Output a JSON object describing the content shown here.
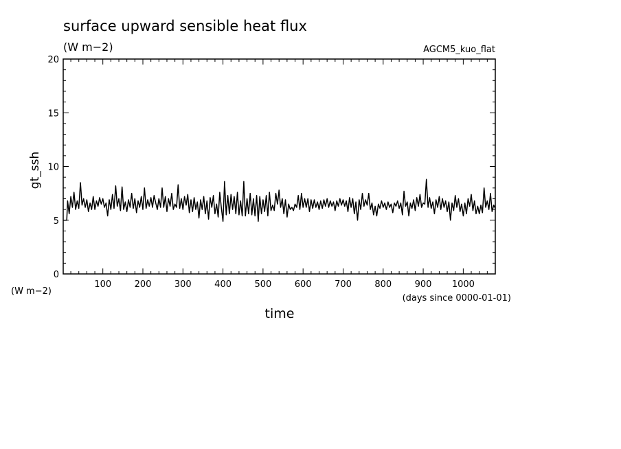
{
  "chart_data": {
    "type": "line",
    "title": "surface upward sensible heat flux",
    "title_units": "(W m−2)",
    "experiment": "AGCM5_kuo_flat",
    "xlabel": "time",
    "x_units": "(days since 0000-01-01)",
    "ylabel": "gt_ssh",
    "y_units": "(W m−2)",
    "xlim": [
      1,
      1080
    ],
    "ylim": [
      0,
      20
    ],
    "x_ticks": [
      100,
      200,
      300,
      400,
      500,
      600,
      700,
      800,
      900,
      1000
    ],
    "y_ticks": [
      0,
      5,
      10,
      15,
      20
    ],
    "grid": false,
    "series": [
      {
        "values": [
          [
            1,
            5.0
          ],
          [
            10,
            5.0
          ],
          [
            12,
            6.8
          ],
          [
            16,
            5.6
          ],
          [
            20,
            7.2
          ],
          [
            24,
            6.2
          ],
          [
            28,
            7.6
          ],
          [
            32,
            6.0
          ],
          [
            36,
            6.8
          ],
          [
            40,
            6.1
          ],
          [
            44,
            8.5
          ],
          [
            48,
            6.4
          ],
          [
            52,
            7.0
          ],
          [
            56,
            6.2
          ],
          [
            60,
            6.9
          ],
          [
            64,
            5.8
          ],
          [
            68,
            6.6
          ],
          [
            72,
            6.0
          ],
          [
            76,
            7.2
          ],
          [
            80,
            6.0
          ],
          [
            84,
            6.8
          ],
          [
            88,
            6.3
          ],
          [
            92,
            7.1
          ],
          [
            96,
            6.5
          ],
          [
            100,
            7.0
          ],
          [
            104,
            6.2
          ],
          [
            108,
            6.6
          ],
          [
            112,
            5.4
          ],
          [
            116,
            6.9
          ],
          [
            120,
            6.0
          ],
          [
            124,
            7.4
          ],
          [
            128,
            6.1
          ],
          [
            132,
            8.2
          ],
          [
            136,
            6.3
          ],
          [
            140,
            7.0
          ],
          [
            144,
            5.9
          ],
          [
            148,
            8.1
          ],
          [
            152,
            6.0
          ],
          [
            156,
            6.7
          ],
          [
            160,
            5.8
          ],
          [
            164,
            6.9
          ],
          [
            168,
            6.2
          ],
          [
            172,
            7.5
          ],
          [
            176,
            6.1
          ],
          [
            180,
            7.0
          ],
          [
            184,
            5.7
          ],
          [
            188,
            6.8
          ],
          [
            192,
            6.2
          ],
          [
            196,
            7.2
          ],
          [
            200,
            6.0
          ],
          [
            204,
            8.0
          ],
          [
            208,
            6.1
          ],
          [
            212,
            6.9
          ],
          [
            216,
            6.3
          ],
          [
            220,
            7.1
          ],
          [
            224,
            6.2
          ],
          [
            228,
            7.3
          ],
          [
            232,
            6.6
          ],
          [
            236,
            6.0
          ],
          [
            240,
            7.0
          ],
          [
            244,
            6.2
          ],
          [
            248,
            8.0
          ],
          [
            252,
            6.2
          ],
          [
            256,
            7.2
          ],
          [
            260,
            5.8
          ],
          [
            264,
            7.0
          ],
          [
            268,
            6.3
          ],
          [
            272,
            7.5
          ],
          [
            276,
            6.0
          ],
          [
            280,
            6.5
          ],
          [
            284,
            6.2
          ],
          [
            288,
            8.3
          ],
          [
            292,
            6.1
          ],
          [
            296,
            7.0
          ],
          [
            300,
            6.0
          ],
          [
            304,
            7.2
          ],
          [
            308,
            6.4
          ],
          [
            312,
            7.4
          ],
          [
            316,
            5.7
          ],
          [
            320,
            6.9
          ],
          [
            324,
            5.8
          ],
          [
            328,
            7.1
          ],
          [
            332,
            6.0
          ],
          [
            336,
            6.7
          ],
          [
            340,
            5.2
          ],
          [
            344,
            6.9
          ],
          [
            348,
            6.0
          ],
          [
            352,
            7.2
          ],
          [
            356,
            5.6
          ],
          [
            360,
            6.8
          ],
          [
            364,
            5.1
          ],
          [
            368,
            7.1
          ],
          [
            372,
            6.2
          ],
          [
            376,
            7.3
          ],
          [
            380,
            5.6
          ],
          [
            384,
            6.5
          ],
          [
            388,
            5.3
          ],
          [
            392,
            7.6
          ],
          [
            396,
            6.1
          ],
          [
            400,
            4.9
          ],
          [
            404,
            8.6
          ],
          [
            408,
            5.5
          ],
          [
            412,
            7.3
          ],
          [
            416,
            5.6
          ],
          [
            420,
            7.4
          ],
          [
            424,
            6.0
          ],
          [
            428,
            7.2
          ],
          [
            432,
            5.6
          ],
          [
            436,
            7.6
          ],
          [
            440,
            5.5
          ],
          [
            444,
            6.8
          ],
          [
            448,
            5.4
          ],
          [
            452,
            8.6
          ],
          [
            456,
            5.4
          ],
          [
            460,
            7.0
          ],
          [
            464,
            5.6
          ],
          [
            468,
            7.5
          ],
          [
            472,
            5.5
          ],
          [
            476,
            7.0
          ],
          [
            480,
            5.4
          ],
          [
            484,
            7.3
          ],
          [
            488,
            4.9
          ],
          [
            492,
            7.2
          ],
          [
            496,
            5.6
          ],
          [
            500,
            6.9
          ],
          [
            504,
            5.8
          ],
          [
            508,
            7.3
          ],
          [
            512,
            5.4
          ],
          [
            516,
            7.6
          ],
          [
            520,
            5.9
          ],
          [
            524,
            6.4
          ],
          [
            528,
            5.9
          ],
          [
            532,
            7.5
          ],
          [
            536,
            6.5
          ],
          [
            540,
            7.8
          ],
          [
            544,
            6.2
          ],
          [
            548,
            7.0
          ],
          [
            552,
            5.6
          ],
          [
            556,
            6.9
          ],
          [
            560,
            5.3
          ],
          [
            564,
            6.5
          ],
          [
            568,
            6.0
          ],
          [
            572,
            6.2
          ],
          [
            576,
            5.9
          ],
          [
            580,
            6.5
          ],
          [
            584,
            6.2
          ],
          [
            588,
            7.3
          ],
          [
            592,
            6.0
          ],
          [
            596,
            7.5
          ],
          [
            600,
            6.2
          ],
          [
            604,
            7.0
          ],
          [
            608,
            6.2
          ],
          [
            612,
            7.0
          ],
          [
            616,
            5.8
          ],
          [
            620,
            6.9
          ],
          [
            624,
            6.1
          ],
          [
            628,
            6.9
          ],
          [
            632,
            6.2
          ],
          [
            636,
            6.7
          ],
          [
            640,
            6.0
          ],
          [
            644,
            6.8
          ],
          [
            648,
            6.1
          ],
          [
            652,
            6.9
          ],
          [
            656,
            6.3
          ],
          [
            660,
            7.0
          ],
          [
            664,
            6.2
          ],
          [
            668,
            6.8
          ],
          [
            672,
            6.3
          ],
          [
            676,
            6.7
          ],
          [
            680,
            5.9
          ],
          [
            684,
            6.8
          ],
          [
            688,
            6.3
          ],
          [
            692,
            7.0
          ],
          [
            696,
            6.4
          ],
          [
            700,
            6.9
          ],
          [
            704,
            6.3
          ],
          [
            708,
            6.8
          ],
          [
            712,
            5.8
          ],
          [
            716,
            7.1
          ],
          [
            720,
            6.2
          ],
          [
            724,
            7.0
          ],
          [
            728,
            5.6
          ],
          [
            732,
            6.7
          ],
          [
            736,
            5.0
          ],
          [
            740,
            6.9
          ],
          [
            744,
            6.0
          ],
          [
            748,
            7.5
          ],
          [
            752,
            6.3
          ],
          [
            756,
            6.9
          ],
          [
            760,
            6.4
          ],
          [
            764,
            7.5
          ],
          [
            768,
            6.0
          ],
          [
            772,
            6.6
          ],
          [
            776,
            5.5
          ],
          [
            780,
            6.3
          ],
          [
            784,
            5.4
          ],
          [
            788,
            6.5
          ],
          [
            792,
            6.1
          ],
          [
            796,
            6.8
          ],
          [
            800,
            6.2
          ],
          [
            804,
            6.6
          ],
          [
            808,
            6.0
          ],
          [
            812,
            6.7
          ],
          [
            816,
            6.2
          ],
          [
            820,
            6.5
          ],
          [
            824,
            5.7
          ],
          [
            828,
            6.6
          ],
          [
            832,
            6.3
          ],
          [
            836,
            6.8
          ],
          [
            840,
            6.1
          ],
          [
            844,
            6.6
          ],
          [
            848,
            5.5
          ],
          [
            852,
            7.7
          ],
          [
            856,
            6.3
          ],
          [
            860,
            6.7
          ],
          [
            864,
            5.4
          ],
          [
            868,
            6.6
          ],
          [
            872,
            6.1
          ],
          [
            876,
            6.9
          ],
          [
            880,
            5.9
          ],
          [
            884,
            7.1
          ],
          [
            888,
            6.3
          ],
          [
            892,
            7.4
          ],
          [
            896,
            6.2
          ],
          [
            900,
            6.6
          ],
          [
            904,
            6.5
          ],
          [
            908,
            8.8
          ],
          [
            912,
            6.2
          ],
          [
            916,
            7.1
          ],
          [
            920,
            6.1
          ],
          [
            924,
            6.7
          ],
          [
            928,
            5.6
          ],
          [
            932,
            6.9
          ],
          [
            936,
            6.2
          ],
          [
            940,
            7.2
          ],
          [
            944,
            6.0
          ],
          [
            948,
            7.0
          ],
          [
            952,
            6.2
          ],
          [
            956,
            6.8
          ],
          [
            960,
            5.8
          ],
          [
            964,
            6.7
          ],
          [
            968,
            5.0
          ],
          [
            972,
            6.6
          ],
          [
            976,
            5.9
          ],
          [
            980,
            7.3
          ],
          [
            984,
            6.2
          ],
          [
            988,
            7.0
          ],
          [
            992,
            5.8
          ],
          [
            996,
            6.5
          ],
          [
            1000,
            5.4
          ],
          [
            1004,
            6.6
          ],
          [
            1008,
            5.6
          ],
          [
            1012,
            7.0
          ],
          [
            1016,
            6.3
          ],
          [
            1020,
            7.4
          ],
          [
            1024,
            5.9
          ],
          [
            1028,
            6.8
          ],
          [
            1032,
            5.6
          ],
          [
            1036,
            6.3
          ],
          [
            1040,
            5.6
          ],
          [
            1044,
            6.4
          ],
          [
            1048,
            5.7
          ],
          [
            1052,
            8.0
          ],
          [
            1056,
            6.2
          ],
          [
            1060,
            6.8
          ],
          [
            1064,
            6.0
          ],
          [
            1068,
            7.5
          ],
          [
            1072,
            5.8
          ],
          [
            1076,
            6.4
          ],
          [
            1080,
            6.1
          ]
        ]
      }
    ]
  }
}
